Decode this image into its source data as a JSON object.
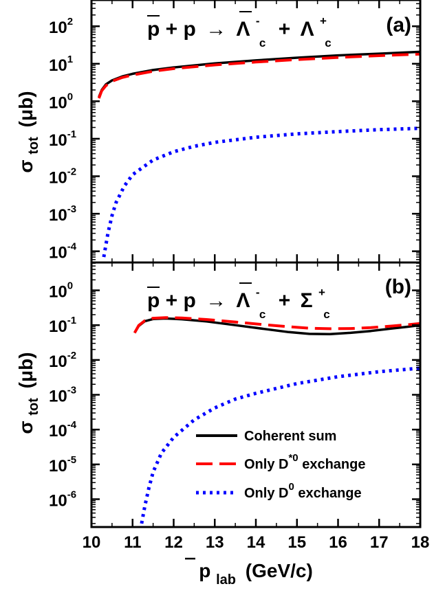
{
  "chart_data": [
    {
      "type": "line",
      "panel_label": "(a)",
      "reaction": {
        "lhs": "p + p",
        "arrow": "→",
        "product1": "Λ",
        "product1_sub": "c",
        "product1_sup": "-",
        "plus": "+",
        "product2": "Λ",
        "product2_sub": "c",
        "product2_sup": "+"
      },
      "xlim": [
        10,
        18
      ],
      "ylim_log10": [
        -4.3,
        2.7
      ],
      "y_scale": "log",
      "ylabel": "σ",
      "ylabel_sub": "tot",
      "ylabel_unit": "(μb)",
      "y_ticks": [
        {
          "base": "10",
          "exp": "2"
        },
        {
          "base": "10",
          "exp": "1"
        },
        {
          "base": "10",
          "exp": "0"
        },
        {
          "base": "10",
          "exp": "-1"
        },
        {
          "base": "10",
          "exp": "-2"
        },
        {
          "base": "10",
          "exp": "-3"
        },
        {
          "base": "10",
          "exp": "-4"
        }
      ],
      "y_tick_values": [
        2,
        1,
        0,
        -1,
        -2,
        -3,
        -4
      ],
      "series": [
        {
          "name": "Coherent sum",
          "color": "#000000",
          "dash": "solid",
          "x": [
            10.18,
            10.25,
            10.35,
            10.5,
            10.75,
            11,
            11.5,
            12,
            13,
            14,
            15,
            16,
            17,
            18
          ],
          "y": [
            1.3,
            2.0,
            2.8,
            3.6,
            4.6,
            5.4,
            6.8,
            8.0,
            10.2,
            12.3,
            14.5,
            16.7,
            18.6,
            20.8
          ]
        },
        {
          "name": "Only D*0 exchange",
          "color": "#ff0000",
          "dash": "dashed",
          "x": [
            10.18,
            10.25,
            10.35,
            10.5,
            10.75,
            11,
            11.5,
            12,
            13,
            14,
            15,
            16,
            17,
            18
          ],
          "y": [
            1.2,
            1.9,
            2.6,
            3.4,
            4.3,
            5.0,
            6.3,
            7.4,
            9.3,
            11.1,
            12.9,
            14.7,
            16.4,
            18.1
          ]
        },
        {
          "name": "Only D0 exchange",
          "color": "#0000ff",
          "dash": "dotted",
          "x": [
            10.3,
            10.4,
            10.5,
            10.6,
            10.8,
            11,
            11.5,
            12,
            12.5,
            13,
            14,
            15,
            16,
            17,
            18
          ],
          "y": [
            7e-05,
            0.0003,
            0.0009,
            0.002,
            0.0055,
            0.011,
            0.027,
            0.045,
            0.063,
            0.08,
            0.11,
            0.135,
            0.155,
            0.175,
            0.19
          ]
        }
      ]
    },
    {
      "type": "line",
      "panel_label": "(b)",
      "reaction": {
        "lhs": "p + p",
        "arrow": "→",
        "product1": "Λ",
        "product1_sub": "c",
        "product1_sup": "-",
        "plus": "+",
        "product2": "Σ",
        "product2_sub": "c",
        "product2_sup": "+"
      },
      "xlim": [
        10,
        18
      ],
      "ylim_log10": [
        -6.8,
        0.8
      ],
      "y_scale": "log",
      "xlabel": "p",
      "xlabel_sub": "lab",
      "xlabel_unit": "(GeV/c)",
      "ylabel": "σ",
      "ylabel_sub": "tot",
      "ylabel_unit": "(μb)",
      "x_ticks": [
        "10",
        "11",
        "12",
        "13",
        "14",
        "15",
        "16",
        "17",
        "18"
      ],
      "y_ticks": [
        {
          "base": "10",
          "exp": "0"
        },
        {
          "base": "10",
          "exp": "-1"
        },
        {
          "base": "10",
          "exp": "-2"
        },
        {
          "base": "10",
          "exp": "-3"
        },
        {
          "base": "10",
          "exp": "-4"
        },
        {
          "base": "10",
          "exp": "-5"
        },
        {
          "base": "10",
          "exp": "-6"
        }
      ],
      "y_tick_values": [
        0,
        -1,
        -2,
        -3,
        -4,
        -5,
        -6
      ],
      "series": [
        {
          "name": "Coherent sum",
          "color": "#000000",
          "dash": "solid",
          "x": [
            11.05,
            11.15,
            11.3,
            11.5,
            11.8,
            12.2,
            12.8,
            13.5,
            14.2,
            14.8,
            15.3,
            15.8,
            16.3,
            16.8,
            17.3,
            17.7,
            18
          ],
          "y": [
            0.06,
            0.095,
            0.13,
            0.15,
            0.155,
            0.148,
            0.128,
            0.1,
            0.078,
            0.063,
            0.056,
            0.055,
            0.06,
            0.068,
            0.08,
            0.09,
            0.1
          ]
        },
        {
          "name": "Only D*0 exchange",
          "color": "#ff0000",
          "dash": "dashed",
          "x": [
            11.05,
            11.15,
            11.3,
            11.5,
            11.8,
            12.2,
            12.8,
            13.5,
            14.2,
            14.8,
            15.3,
            15.8,
            16.3,
            16.8,
            17.3,
            17.7,
            18
          ],
          "y": [
            0.06,
            0.098,
            0.135,
            0.158,
            0.165,
            0.16,
            0.145,
            0.123,
            0.103,
            0.09,
            0.082,
            0.079,
            0.08,
            0.085,
            0.094,
            0.103,
            0.112
          ]
        },
        {
          "name": "Only D0 exchange",
          "color": "#0000ff",
          "dash": "dotted",
          "x": [
            11.22,
            11.3,
            11.4,
            11.5,
            11.7,
            12,
            12.5,
            13,
            13.5,
            14,
            15,
            16,
            17,
            18
          ],
          "y": [
            2e-07,
            6.5e-07,
            2.2e-06,
            6e-06,
            2.1e-05,
            6e-05,
            0.00019,
            0.00042,
            0.00075,
            0.0011,
            0.0021,
            0.0033,
            0.0046,
            0.0058
          ]
        }
      ]
    }
  ],
  "legend": [
    {
      "label": "Coherent sum",
      "color": "#000000",
      "dash": "solid"
    },
    {
      "label": "Only D",
      "sup": "*0",
      "suffix": " exchange",
      "color": "#ff0000",
      "dash": "dashed"
    },
    {
      "label": "Only D",
      "sup": "0",
      "suffix": " exchange",
      "color": "#0000ff",
      "dash": "dotted"
    }
  ]
}
